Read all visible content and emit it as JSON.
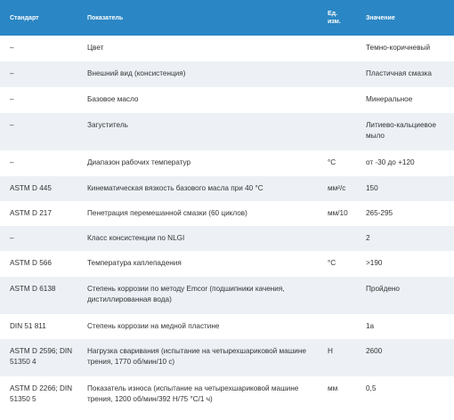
{
  "table": {
    "headers": {
      "standard": "Стандарт",
      "indicator": "Показатель",
      "unit_line1": "Ед.",
      "unit_line2": "изм.",
      "value": "Значение"
    },
    "rows": [
      {
        "standard": "–",
        "indicator": "Цвет",
        "unit": "",
        "value": "Темно-коричневый"
      },
      {
        "standard": "–",
        "indicator": "Внешний вид (консистенция)",
        "unit": "",
        "value": "Пластичная смазка"
      },
      {
        "standard": "–",
        "indicator": "Базовое масло",
        "unit": "",
        "value": "Минеральное"
      },
      {
        "standard": "–",
        "indicator": "Загуститель",
        "unit": "",
        "value": "Литиево-кальциевое мыло"
      },
      {
        "standard": "–",
        "indicator": "Диапазон рабочих температур",
        "unit": "°С",
        "value": "от -30 до +120"
      },
      {
        "standard": "ASTM D 445",
        "indicator": "Кинематическая вязкость базового масла при 40 °С",
        "unit": "мм²/с",
        "value": "150"
      },
      {
        "standard": "ASTM D 217",
        "indicator": "Пенетрация перемешанной смазки (60 циклов)",
        "unit": "мм/10",
        "value": "265-295"
      },
      {
        "standard": "–",
        "indicator": "Класс консистенции по NLGI",
        "unit": "",
        "value": "2"
      },
      {
        "standard": "ASTM D 566",
        "indicator": "Температура каплепадения",
        "unit": "°С",
        "value": ">190"
      },
      {
        "standard": "ASTM D 6138",
        "indicator": "Степень коррозии по методу Emcor (подшипники качения, дистиллированная вода)",
        "unit": "",
        "value": "Пройдено"
      },
      {
        "standard": "DIN 51 811",
        "indicator": "Степень коррозии на медной пластине",
        "unit": "",
        "value": "1а"
      },
      {
        "standard": "ASTM D 2596; DIN 51350 4",
        "indicator": "Нагрузка сваривания (испытание на четырехшариковой машине трения, 1770 об/мин/10 с)",
        "unit": "Н",
        "value": "2600"
      },
      {
        "standard": "ASTM D 2266; DIN 51350 5",
        "indicator": "Показатель износа (испытание на четырехшариковой машине трения, 1200 об/мин/392 Н/75 °С/1 ч)",
        "unit": "мм",
        "value": "0,5"
      }
    ]
  }
}
